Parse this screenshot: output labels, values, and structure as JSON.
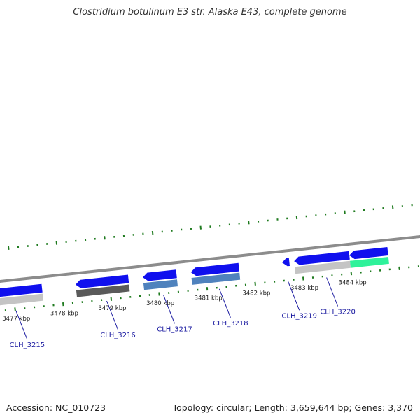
{
  "title": "Clostridium botulinum E3 str. Alaska E43, complete genome",
  "footer": {
    "accession": "Accession: NC_010723",
    "topology": "Topology: circular; Length: 3,659,644 bp; Genes: 3,370"
  },
  "colors": {
    "backbone": "#8c8c8c",
    "gene_forward": "#1010ee",
    "tick": "#1e7a1e",
    "label": "#1a1aa0",
    "feature_light_gray": "#c4c4c4",
    "feature_dark_gray": "#5a5a5a",
    "feature_steel_blue": "#4f82bd",
    "feature_mint": "#2ef29a"
  },
  "ruler_labels": [
    {
      "kbp": 3477,
      "text": "3477 kbp"
    },
    {
      "kbp": 3478,
      "text": "3478 kbp"
    },
    {
      "kbp": 3479,
      "text": "3479 kbp"
    },
    {
      "kbp": 3480,
      "text": "3480 kbp"
    },
    {
      "kbp": 3481,
      "text": "3481 kbp"
    },
    {
      "kbp": 3482,
      "text": "3482 kbp"
    },
    {
      "kbp": 3483,
      "text": "3483 kbp"
    },
    {
      "kbp": 3484,
      "text": "3484 kbp"
    }
  ],
  "genes": [
    {
      "name": "CLH_3215",
      "start_kbp": 3476.3,
      "end_kbp": 3477.6,
      "feature_color": "#c4c4c4"
    },
    {
      "name": "CLH_3216",
      "start_kbp": 3478.3,
      "end_kbp": 3479.4,
      "feature_color": "#5a5a5a"
    },
    {
      "name": "CLH_3217",
      "start_kbp": 3479.7,
      "end_kbp": 3480.4,
      "feature_color": "#4f82bd"
    },
    {
      "name": "CLH_3218",
      "start_kbp": 3480.7,
      "end_kbp": 3481.7,
      "feature_color": "#4f82bd"
    },
    {
      "name": "CLH_3219",
      "start_kbp": 3482.6,
      "end_kbp": 3482.75,
      "feature_color": null
    },
    {
      "name": "CLH_3220",
      "start_kbp": 3482.85,
      "end_kbp": 3484.0,
      "feature_color": "#c4c4c4"
    },
    {
      "name": "",
      "start_kbp": 3484.0,
      "end_kbp": 3484.8,
      "feature_color": "#2ef29a"
    }
  ]
}
